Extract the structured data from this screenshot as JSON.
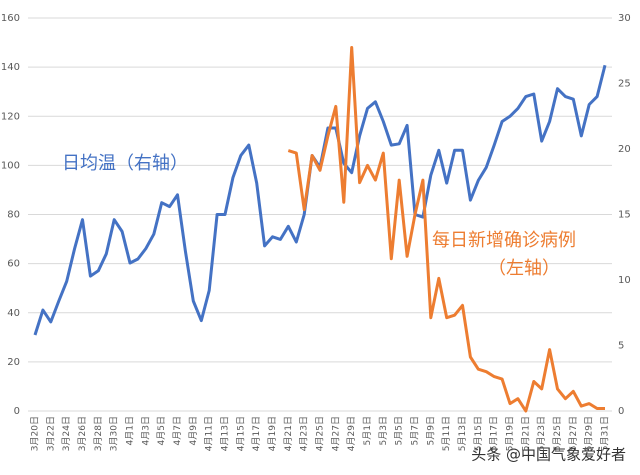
{
  "chart_data": {
    "type": "line",
    "categories": [
      "3月20日",
      null,
      "3月22日",
      null,
      "3月24日",
      null,
      "3月26日",
      null,
      "3月28日",
      null,
      "3月30日",
      null,
      "4月1日",
      null,
      "4月3日",
      null,
      "4月5日",
      null,
      "4月7日",
      null,
      "4月9日",
      null,
      "4月11日",
      null,
      "4月13日",
      null,
      "4月15日",
      null,
      "4月17日",
      null,
      "4月19日",
      null,
      "4月21日",
      null,
      "4月23日",
      null,
      "4月25日",
      null,
      "4月27日",
      null,
      "4月29日",
      null,
      "5月1日",
      null,
      "5月3日",
      null,
      "5月5日",
      null,
      "5月7日",
      null,
      "5月9日",
      null,
      "5月11日",
      null,
      "5月13日",
      null,
      "5月15日",
      null,
      "5月17日",
      null,
      "5月19日",
      null,
      "5月21日",
      null,
      "5月23日",
      null,
      "5月25日",
      null,
      "5月27日",
      null,
      "5月29日",
      null,
      "5月31日"
    ],
    "series": [
      {
        "name": "日均温（右轴）",
        "color": "#4472c4",
        "axis": "y2",
        "values": [
          5.8,
          7.7,
          6.8,
          8.4,
          9.9,
          12.4,
          14.6,
          10.3,
          10.7,
          12.0,
          14.6,
          13.7,
          11.3,
          11.6,
          12.4,
          13.5,
          15.9,
          15.6,
          16.5,
          12.2,
          8.4,
          6.9,
          9.2,
          15.0,
          15.0,
          17.8,
          19.5,
          20.3,
          17.4,
          12.6,
          13.3,
          13.1,
          14.1,
          12.9,
          15.0,
          19.5,
          18.6,
          21.6,
          21.6,
          18.9,
          18.2,
          21.0,
          23.1,
          23.6,
          22.1,
          20.3,
          20.4,
          21.8,
          15.0,
          14.8,
          18.0,
          19.9,
          17.4,
          19.9,
          19.9,
          16.1,
          17.6,
          18.6,
          20.3,
          22.1,
          22.5,
          23.1,
          24.0,
          24.2,
          20.6,
          22.1,
          24.6,
          24.0,
          23.8,
          21.0,
          23.4,
          24.0,
          26.4
        ]
      },
      {
        "name": "每日新增确诊病例",
        "name2": "（左轴）",
        "color": "#ed7d31",
        "axis": "y",
        "values": [
          null,
          null,
          null,
          null,
          null,
          null,
          null,
          null,
          null,
          null,
          null,
          null,
          null,
          null,
          null,
          null,
          null,
          null,
          null,
          null,
          null,
          null,
          null,
          null,
          null,
          null,
          null,
          null,
          null,
          null,
          null,
          null,
          106,
          105,
          82,
          104,
          98,
          112,
          124,
          85,
          148,
          93,
          100,
          94,
          105,
          62,
          94,
          63,
          80,
          94,
          38,
          54,
          38,
          39,
          43,
          22,
          17,
          16,
          14,
          13,
          3,
          5,
          0,
          12,
          9,
          25,
          9,
          5,
          8,
          2,
          3,
          1,
          1
        ]
      }
    ],
    "ylim": [
      0,
      160
    ],
    "yticks": [
      0,
      20,
      40,
      60,
      80,
      100,
      120,
      140,
      160
    ],
    "y2lim": [
      0,
      30
    ],
    "y2ticks": [
      0,
      5,
      10,
      15,
      20,
      25,
      30
    ],
    "grid": true,
    "watermark": "头条 @中国气象爱好者"
  }
}
